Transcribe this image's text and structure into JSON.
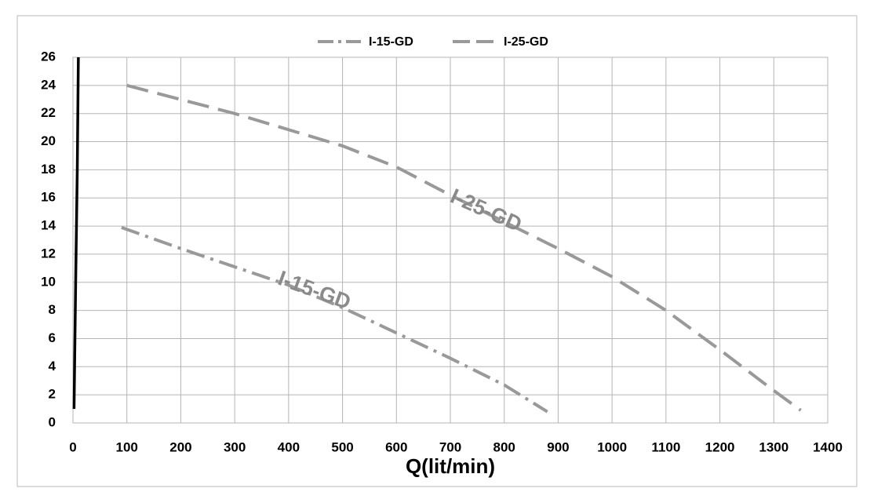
{
  "chart_data": {
    "type": "line",
    "x_label": "Q(lit/min)",
    "xlim": [
      0,
      1400
    ],
    "xticks": [
      0,
      100,
      200,
      300,
      400,
      500,
      600,
      700,
      800,
      900,
      1000,
      1100,
      1200,
      1300,
      1400
    ],
    "ylim": [
      0,
      26
    ],
    "yticks": [
      0,
      2,
      4,
      6,
      8,
      10,
      12,
      14,
      16,
      18,
      20,
      22,
      24,
      26
    ],
    "grid": true,
    "legend": "top",
    "series": [
      {
        "name": "I-15-GD",
        "color": "#999999",
        "line_style": "dashdot",
        "x": [
          90,
          200,
          300,
          400,
          500,
          600,
          700,
          800,
          880
        ],
        "values": [
          13.9,
          12.4,
          11.1,
          9.8,
          8.2,
          6.4,
          4.6,
          2.7,
          0.8
        ]
      },
      {
        "name": "I-25-GD",
        "color": "#999999",
        "line_style": "dashed",
        "x": [
          100,
          300,
          500,
          600,
          700,
          800,
          900,
          1000,
          1100,
          1200,
          1300,
          1350
        ],
        "values": [
          24,
          22,
          19.7,
          18.2,
          16.2,
          14.3,
          12.4,
          10.4,
          8,
          5.2,
          2.3,
          0.9
        ]
      },
      {
        "color": "#000000",
        "line_style": "solid",
        "x": [
          2,
          5,
          8,
          10
        ],
        "values": [
          1,
          10,
          18,
          26
        ]
      }
    ],
    "annotations": [
      "I-25-GD",
      "I-15-GD"
    ]
  }
}
